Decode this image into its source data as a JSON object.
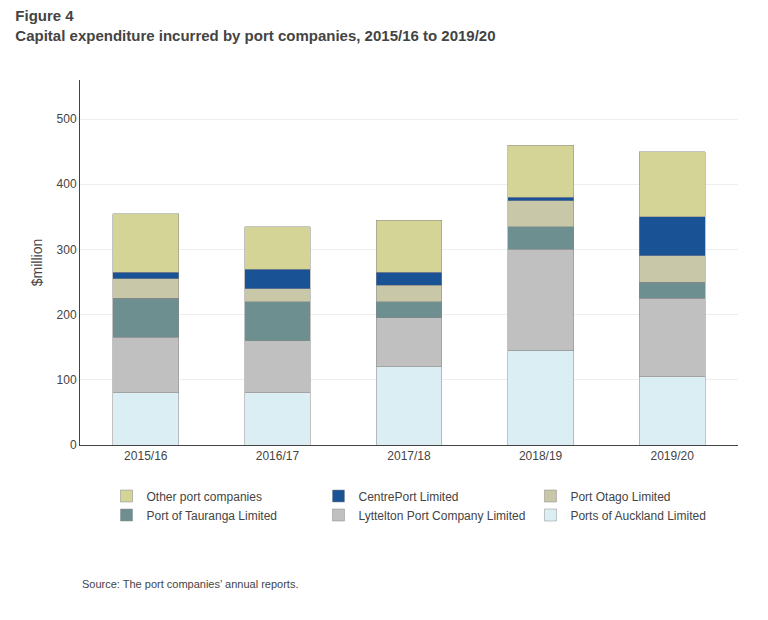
{
  "chart_data": {
    "type": "bar",
    "stacked": true,
    "title": "Figure 4",
    "subtitle": "Capital expenditure incurred by port companies, 2015/16 to 2019/20",
    "annotations": [
      "Source: The port companies’ annual reports."
    ],
    "y_label": "$million",
    "categories": [
      "2015/16",
      "2016/17",
      "2017/18",
      "2018/19",
      "2019/20"
    ],
    "series": [
      {
        "name": "Ports of Auckland Limited",
        "color": "#daeef3",
        "values": [
          80,
          80,
          120,
          145,
          105
        ]
      },
      {
        "name": "Lyttelton Port Company Limited",
        "color": "#c0c0c0",
        "values": [
          85,
          80,
          75,
          155,
          120
        ]
      },
      {
        "name": "Port of Tauranga Limited",
        "color": "#6d8f8f",
        "values": [
          60,
          60,
          25,
          35,
          25
        ]
      },
      {
        "name": "Port Otago Limited",
        "color": "#c8c8a8",
        "values": [
          30,
          20,
          25,
          40,
          40
        ]
      },
      {
        "name": "CentrePort Limited",
        "color": "#1a5296",
        "values": [
          10,
          30,
          20,
          5,
          60
        ]
      },
      {
        "name": "Other port companies",
        "color": "#d4d496",
        "values": [
          90,
          65,
          80,
          80,
          100
        ]
      }
    ],
    "ylim": [
      0,
      560
    ],
    "yticks": [
      0,
      100,
      200,
      300,
      400,
      500
    ],
    "grid": true,
    "legend": "bottom"
  }
}
